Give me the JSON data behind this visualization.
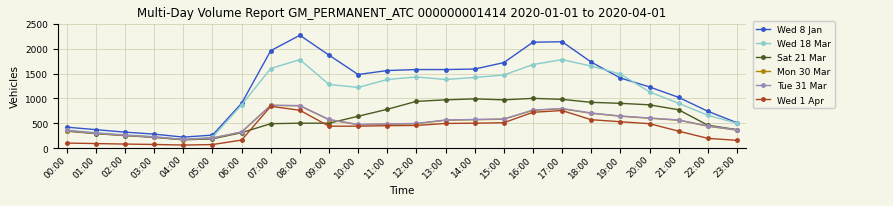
{
  "title": "Multi-Day Volume Report GM_PERMANENT_ATC 000000001414 2020-01-01 to 2020-04-01",
  "xlabel": "Time",
  "ylabel": "Vehicles",
  "ylim": [
    0,
    2500
  ],
  "yticks": [
    0,
    500,
    1000,
    1500,
    2000,
    2500
  ],
  "hours": [
    0,
    1,
    2,
    3,
    4,
    5,
    6,
    7,
    8,
    9,
    10,
    11,
    12,
    13,
    14,
    15,
    16,
    17,
    18,
    19,
    20,
    21,
    22,
    23
  ],
  "series": [
    {
      "label": "Wed 8 Jan",
      "color": "#3355cc",
      "marker": "o",
      "values": [
        420,
        370,
        320,
        280,
        220,
        260,
        900,
        1960,
        2270,
        1870,
        1480,
        1560,
        1580,
        1580,
        1590,
        1720,
        2130,
        2140,
        1730,
        1410,
        1230,
        1020,
        740,
        510
      ]
    },
    {
      "label": "Wed 18 Mar",
      "color": "#88cccc",
      "marker": "o",
      "values": [
        360,
        310,
        265,
        230,
        175,
        215,
        870,
        1600,
        1780,
        1280,
        1220,
        1380,
        1430,
        1380,
        1420,
        1470,
        1680,
        1780,
        1650,
        1490,
        1130,
        900,
        660,
        500
      ]
    },
    {
      "label": "Sat 21 Mar",
      "color": "#4a5a20",
      "marker": "o",
      "values": [
        340,
        290,
        250,
        215,
        165,
        185,
        310,
        490,
        500,
        500,
        640,
        780,
        940,
        970,
        990,
        970,
        1000,
        980,
        920,
        900,
        870,
        770,
        460,
        370
      ]
    },
    {
      "label": "Mon 30 Mar",
      "color": "#aa8800",
      "marker": "o",
      "values": [
        350,
        295,
        255,
        220,
        170,
        200,
        320,
        860,
        850,
        570,
        470,
        480,
        490,
        560,
        570,
        580,
        760,
        790,
        700,
        640,
        600,
        560,
        440,
        360
      ]
    },
    {
      "label": "Tue 31 Mar",
      "color": "#9988bb",
      "marker": "o",
      "values": [
        355,
        300,
        258,
        222,
        172,
        202,
        325,
        860,
        855,
        575,
        475,
        485,
        495,
        565,
        575,
        585,
        765,
        795,
        705,
        645,
        605,
        565,
        445,
        365
      ]
    },
    {
      "label": "Wed 1 Apr",
      "color": "#aa4422",
      "marker": "o",
      "values": [
        100,
        90,
        80,
        72,
        60,
        70,
        160,
        840,
        760,
        440,
        440,
        450,
        455,
        495,
        500,
        510,
        720,
        755,
        570,
        530,
        490,
        340,
        195,
        155
      ]
    }
  ],
  "background_color": "#f5f5e8",
  "grid_color": "#ccccaa",
  "title_fontsize": 8.5,
  "label_fontsize": 7.5,
  "tick_fontsize": 6.5,
  "legend_fontsize": 6.5
}
